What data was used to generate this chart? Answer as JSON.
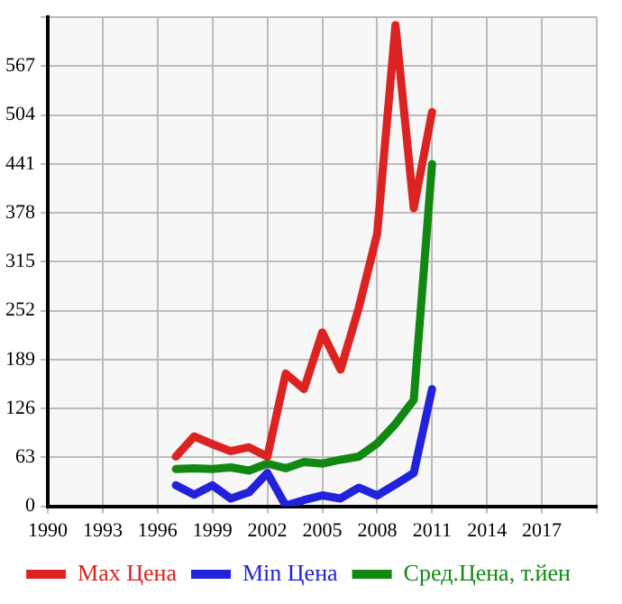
{
  "chart_data": {
    "type": "line",
    "x": [
      1997,
      1998,
      1999,
      2000,
      2001,
      2002,
      2003,
      2004,
      2005,
      2006,
      2007,
      2008,
      2009,
      2010,
      2011
    ],
    "series": [
      {
        "name": "Max Цена",
        "color": "#dd2222",
        "values": [
          64,
          90,
          80,
          71,
          76,
          64,
          171,
          151,
          224,
          176,
          256,
          351,
          620,
          384,
          508
        ]
      },
      {
        "name": "Min Цена",
        "color": "#2222dd",
        "values": [
          27,
          15,
          27,
          10,
          18,
          43,
          1,
          8,
          14,
          10,
          24,
          14,
          28,
          43,
          151
        ]
      },
      {
        "name": "Сред.Цена, т.йен",
        "color": "#118811",
        "values": [
          48,
          49,
          48,
          50,
          46,
          55,
          49,
          57,
          55,
          60,
          64,
          81,
          106,
          137,
          441
        ]
      }
    ],
    "xlim": [
      1990,
      2020
    ],
    "xticks": [
      1990,
      1993,
      1996,
      1999,
      2002,
      2005,
      2008,
      2011,
      2014,
      2017,
      {
        "value": 2020,
        "label": null
      }
    ],
    "ylim": [
      0,
      630
    ],
    "yticks": [
      0,
      63,
      126,
      189,
      252,
      315,
      378,
      441,
      504,
      567,
      {
        "value": 630,
        "label": null
      }
    ],
    "grid": true,
    "legend": "bottom",
    "marker": "none",
    "line_style": "solid"
  }
}
